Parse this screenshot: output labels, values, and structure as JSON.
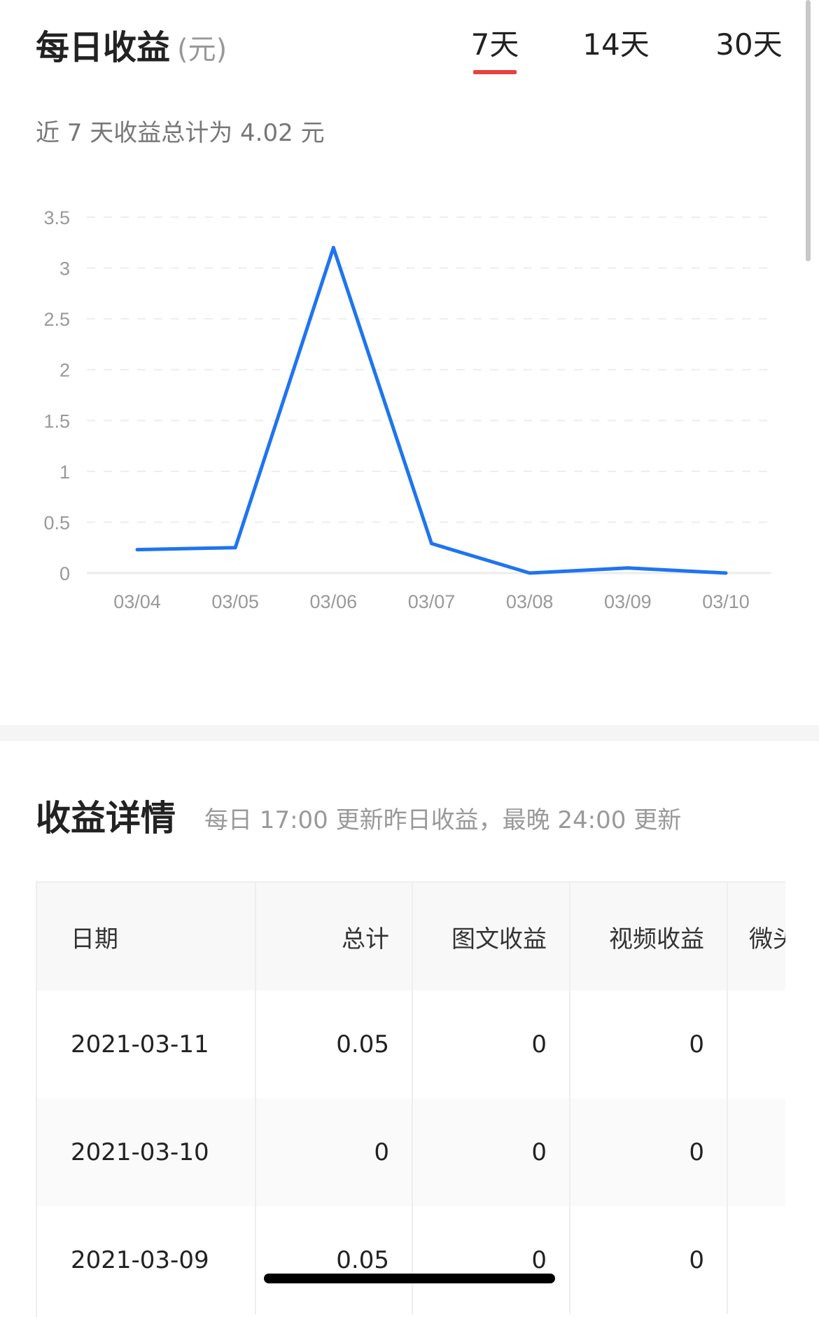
{
  "header": {
    "title": "每日收益",
    "unit": "(元)"
  },
  "tabs": [
    {
      "label": "7天",
      "active": true
    },
    {
      "label": "14天",
      "active": false
    },
    {
      "label": "30天",
      "active": false
    }
  ],
  "accent_color": "#e8413e",
  "summary": "近 7 天收益总计为 4.02 元",
  "chart_data": {
    "type": "line",
    "categories": [
      "03/04",
      "03/05",
      "03/06",
      "03/07",
      "03/08",
      "03/09",
      "03/10"
    ],
    "values": [
      0.23,
      0.25,
      3.2,
      0.29,
      0,
      0.05,
      0
    ],
    "yticks": [
      "0",
      "0.5",
      "1",
      "1.5",
      "2",
      "2.5",
      "3",
      "3.5"
    ],
    "ylim": [
      0,
      3.5
    ],
    "grid": true,
    "line_color": "#1f74f0"
  },
  "details": {
    "title": "收益详情",
    "subtitle": "每日 17:00 更新昨日收益，最晚 24:00 更新",
    "columns": [
      "日期",
      "总计",
      "图文收益",
      "视频收益",
      "微头"
    ],
    "rows": [
      [
        "2021-03-11",
        "0.05",
        "0",
        "0",
        ""
      ],
      [
        "2021-03-10",
        "0",
        "0",
        "0",
        ""
      ],
      [
        "2021-03-09",
        "0.05",
        "0",
        "0",
        ""
      ]
    ]
  }
}
